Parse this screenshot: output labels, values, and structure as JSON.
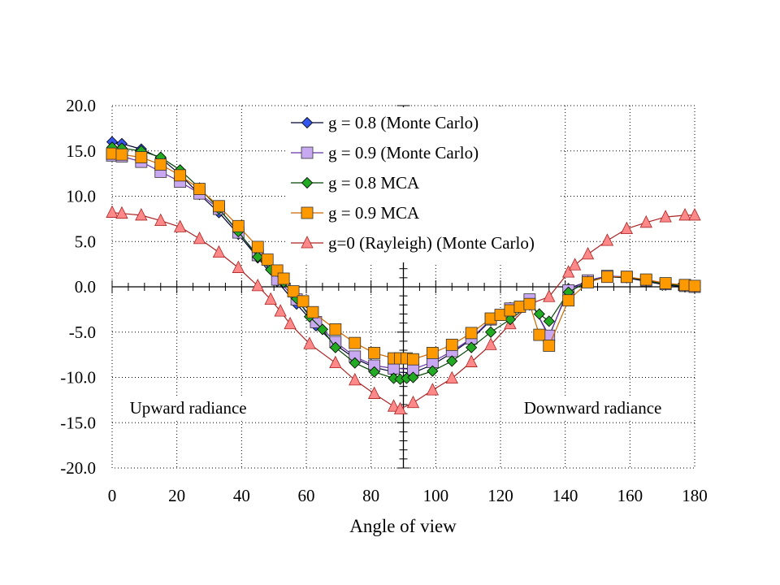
{
  "chart_data": {
    "type": "line",
    "xlabel": "Angle of view",
    "ylabel": "",
    "xlim": [
      0,
      180
    ],
    "ylim": [
      -20,
      20
    ],
    "x_ticks": [
      0,
      20,
      40,
      60,
      80,
      100,
      120,
      140,
      160,
      180
    ],
    "y_ticks": [
      20,
      15,
      10,
      5,
      0,
      -5,
      -10,
      -15,
      -20
    ],
    "x_tick_labels": [
      "0",
      "20",
      "40",
      "60",
      "80",
      "100",
      "120",
      "140",
      "160",
      "180"
    ],
    "y_tick_labels": [
      "20.0",
      "15.0",
      "10.0",
      "5.0",
      "0.0",
      "-5.0",
      "-10.0",
      "-15.0",
      "-20.0"
    ],
    "grid": "dotted",
    "legend_position": "top-center",
    "annotations": [
      {
        "text": "Upward radiance",
        "x": 23.5,
        "y": -14.0
      },
      {
        "text": "Downward radiance",
        "x": 148.5,
        "y": -14.0
      }
    ],
    "series": [
      {
        "name": "g = 0.8 (Monte Carlo)",
        "marker": "diamond",
        "color": "#3355ee",
        "line_color": "#000033",
        "x": [
          0,
          3,
          9,
          15,
          21,
          27,
          33,
          39,
          45,
          51,
          57,
          63,
          69,
          75,
          81,
          87,
          93,
          99,
          105,
          111,
          117,
          123,
          129,
          135,
          141,
          147,
          153,
          159,
          165,
          171,
          177,
          180
        ],
        "y": [
          16.0,
          15.8,
          15.2,
          14.2,
          12.4,
          10.2,
          8.2,
          5.8,
          3.2,
          0.6,
          -1.9,
          -4.3,
          -6.4,
          -7.9,
          -8.9,
          -9.4,
          -9.5,
          -8.6,
          -7.3,
          -5.8,
          -3.7,
          -2.3,
          -1.4,
          -5.5,
          -0.2,
          0.6,
          1.1,
          1.0,
          0.6,
          0.2,
          0.0,
          0.0
        ]
      },
      {
        "name": "g = 0.9 (Monte Carlo)",
        "marker": "square",
        "color": "#c8a8f0",
        "line_color": "#6633aa",
        "x": [
          0,
          3,
          9,
          15,
          21,
          27,
          33,
          39,
          45,
          51,
          57,
          63,
          69,
          75,
          81,
          87,
          93,
          99,
          105,
          111,
          117,
          123,
          129,
          135,
          141,
          147,
          153,
          159,
          165,
          171,
          177,
          180
        ],
        "y": [
          14.5,
          14.4,
          13.8,
          12.7,
          11.6,
          10.3,
          8.6,
          6.0,
          3.5,
          0.8,
          -1.4,
          -3.9,
          -6.1,
          -7.7,
          -8.7,
          -9.0,
          -9.1,
          -8.3,
          -7.1,
          -5.7,
          -3.6,
          -2.4,
          -1.4,
          -5.4,
          -0.4,
          0.7,
          1.2,
          1.1,
          0.7,
          0.3,
          0.1,
          0.0
        ]
      },
      {
        "name": "g = 0.8 MCA",
        "marker": "diamond",
        "color": "#22aa22",
        "line_color": "#004400",
        "x": [
          0,
          3,
          9,
          15,
          21,
          27,
          33,
          39,
          45,
          49,
          53,
          57,
          61,
          65,
          69,
          75,
          81,
          87,
          89,
          91,
          93,
          99,
          105,
          111,
          117,
          123,
          129,
          132,
          135,
          141,
          147,
          153,
          159,
          165,
          171,
          177,
          180
        ],
        "y": [
          15.4,
          15.3,
          15.0,
          14.3,
          12.9,
          10.9,
          8.6,
          6.1,
          3.3,
          1.9,
          0.5,
          -1.3,
          -3.3,
          -4.7,
          -6.7,
          -8.4,
          -9.4,
          -10.1,
          -10.2,
          -10.1,
          -10.0,
          -9.3,
          -8.2,
          -6.7,
          -5.0,
          -3.6,
          -2.0,
          -3.0,
          -3.8,
          -0.6,
          0.6,
          1.1,
          1.1,
          0.7,
          0.3,
          0.1,
          0.0
        ]
      },
      {
        "name": "g = 0.9 MCA",
        "marker": "square",
        "color": "#ff9900",
        "line_color": "#cc6600",
        "x": [
          0,
          3,
          9,
          15,
          21,
          27,
          33,
          39,
          45,
          48,
          51,
          53,
          56,
          59,
          62,
          69,
          75,
          81,
          87,
          89,
          91,
          93,
          99,
          105,
          111,
          117,
          120,
          123,
          126,
          129,
          132,
          135,
          141,
          147,
          153,
          159,
          165,
          171,
          177,
          180
        ],
        "y": [
          14.7,
          14.6,
          14.3,
          13.5,
          12.3,
          10.8,
          8.9,
          6.7,
          4.4,
          3.0,
          1.8,
          0.9,
          -0.5,
          -1.6,
          -2.8,
          -4.7,
          -6.2,
          -7.3,
          -7.9,
          -7.9,
          -7.9,
          -8.0,
          -7.3,
          -6.4,
          -5.1,
          -3.5,
          -3.1,
          -2.6,
          -2.2,
          -1.9,
          -5.3,
          -6.5,
          -1.5,
          0.5,
          1.1,
          1.1,
          0.8,
          0.4,
          0.2,
          0.1
        ]
      },
      {
        "name": "g=0 (Rayleigh) (Monte Carlo)",
        "marker": "triangle",
        "color": "#ff8888",
        "line_color": "#aa2222",
        "x": [
          0,
          3,
          9,
          15,
          21,
          27,
          33,
          39,
          45,
          49,
          52,
          55,
          61,
          69,
          75,
          81,
          87,
          89,
          93,
          99,
          105,
          111,
          117,
          123,
          129,
          135,
          141,
          143,
          147,
          153,
          159,
          165,
          171,
          177,
          180
        ],
        "y": [
          8.2,
          8.1,
          7.9,
          7.3,
          6.6,
          5.3,
          3.8,
          2.1,
          0.1,
          -1.4,
          -2.7,
          -4.1,
          -6.3,
          -8.4,
          -10.3,
          -11.8,
          -13.2,
          -13.5,
          -12.8,
          -11.4,
          -10.1,
          -8.3,
          -6.4,
          -4.1,
          -1.9,
          -1.1,
          1.6,
          2.4,
          3.6,
          5.1,
          6.4,
          7.1,
          7.7,
          7.9,
          7.9
        ]
      }
    ]
  }
}
